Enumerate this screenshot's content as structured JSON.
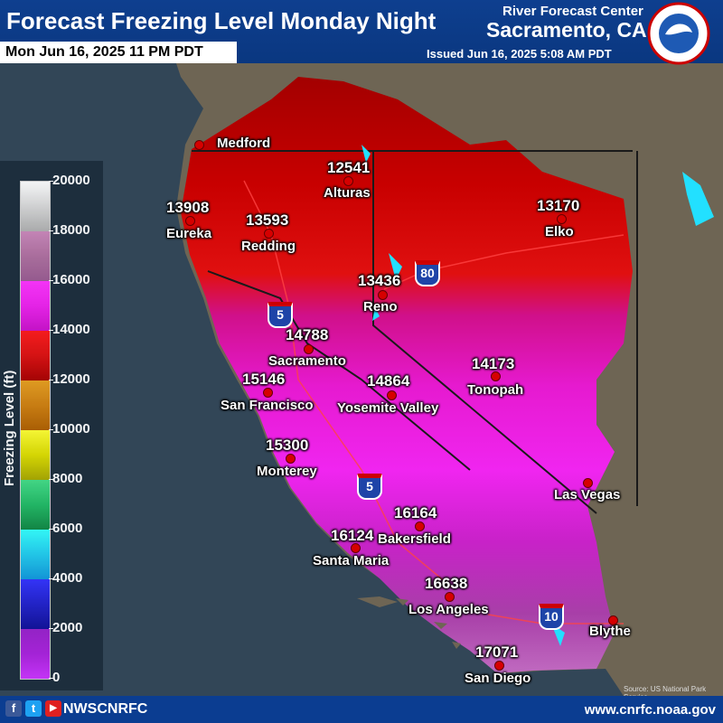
{
  "header": {
    "title": "Forecast Freezing Level Monday Night",
    "valid_time": "Mon Jun 16, 2025 11 PM PDT",
    "rfc_line1": "River Forecast Center",
    "rfc_line2": "Sacramento, CA",
    "issued": "Issued Jun 16, 2025 5:08 AM PDT"
  },
  "legend": {
    "axis_label": "Freezing Level (ft)",
    "ticks": [
      "20000",
      "18000",
      "16000",
      "14000",
      "12000",
      "10000",
      "8000",
      "6000",
      "4000",
      "2000",
      "0"
    ]
  },
  "points": [
    {
      "city": "Medford",
      "value": ""
    },
    {
      "city": "Alturas",
      "value": "12541"
    },
    {
      "city": "Eureka",
      "value": "13908"
    },
    {
      "city": "Redding",
      "value": "13593"
    },
    {
      "city": "Elko",
      "value": "13170"
    },
    {
      "city": "Reno",
      "value": "13436"
    },
    {
      "city": "Sacramento",
      "value": "14788"
    },
    {
      "city": "Tonopah",
      "value": "14173"
    },
    {
      "city": "San Francisco",
      "value": "15146"
    },
    {
      "city": "Yosemite Valley",
      "value": "14864"
    },
    {
      "city": "Monterey",
      "value": "15300"
    },
    {
      "city": "Las Vegas",
      "value": ""
    },
    {
      "city": "Bakersfield",
      "value": "16164"
    },
    {
      "city": "Santa Maria",
      "value": "16124"
    },
    {
      "city": "Los Angeles",
      "value": "16638"
    },
    {
      "city": "Blythe",
      "value": ""
    },
    {
      "city": "San Diego",
      "value": "17071"
    }
  ],
  "interstates": [
    "5",
    "80",
    "5",
    "10"
  ],
  "credit": "Source: US National Park Service",
  "footer": {
    "handle": "NWSCNRFC",
    "website": "www.cnrfc.noaa.gov",
    "social": [
      "f",
      "t",
      "▶"
    ]
  }
}
